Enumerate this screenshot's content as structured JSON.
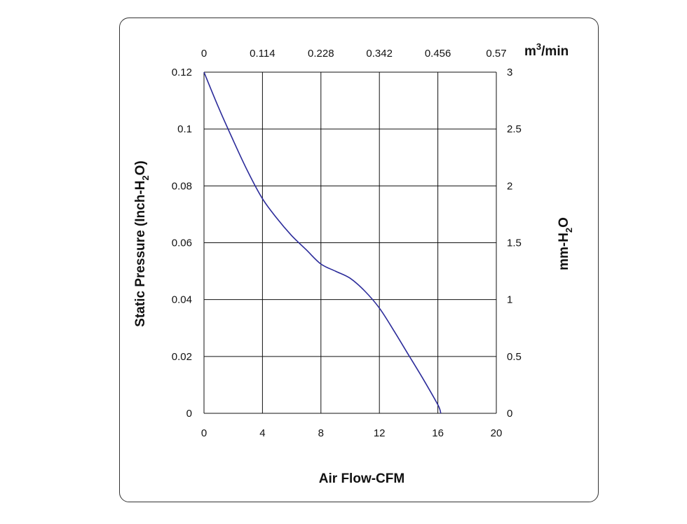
{
  "chart_data": {
    "type": "line",
    "xlabel": "Air Flow-CFM",
    "ylabel": "Static Pressure (Inch-H",
    "ylabel_sub": "2",
    "ylabel_end": "O)",
    "y2label": "mm-H",
    "y2label_sub": "2",
    "y2label_end": "O",
    "x2label": "m",
    "x2label_sup": "3",
    "x2label_end": "/min",
    "xlim": [
      0,
      20
    ],
    "ylim": [
      0,
      0.12
    ],
    "x_ticks": [
      "0",
      "4",
      "8",
      "12",
      "16",
      "20"
    ],
    "y_ticks": [
      "0",
      "0.02",
      "0.04",
      "0.06",
      "0.08",
      "0.1",
      "0.12"
    ],
    "x2_ticks": [
      "0",
      "0.114",
      "0.228",
      "0.342",
      "0.456",
      "0.57"
    ],
    "y2_ticks": [
      "0",
      "0.5",
      "1",
      "1.5",
      "2",
      "2.5",
      "3"
    ],
    "grid": true,
    "line_color": "#2b2b9a",
    "series": [
      {
        "x": [
          0,
          1,
          2,
          3,
          4,
          5,
          6,
          7,
          8,
          9,
          10,
          11,
          12,
          13,
          14,
          15,
          16,
          16.2
        ],
        "values": [
          0.12,
          0.1075,
          0.096,
          0.085,
          0.0755,
          0.0685,
          0.0625,
          0.0575,
          0.0525,
          0.05,
          0.0475,
          0.043,
          0.037,
          0.029,
          0.0205,
          0.012,
          0.003,
          0
        ]
      }
    ]
  }
}
